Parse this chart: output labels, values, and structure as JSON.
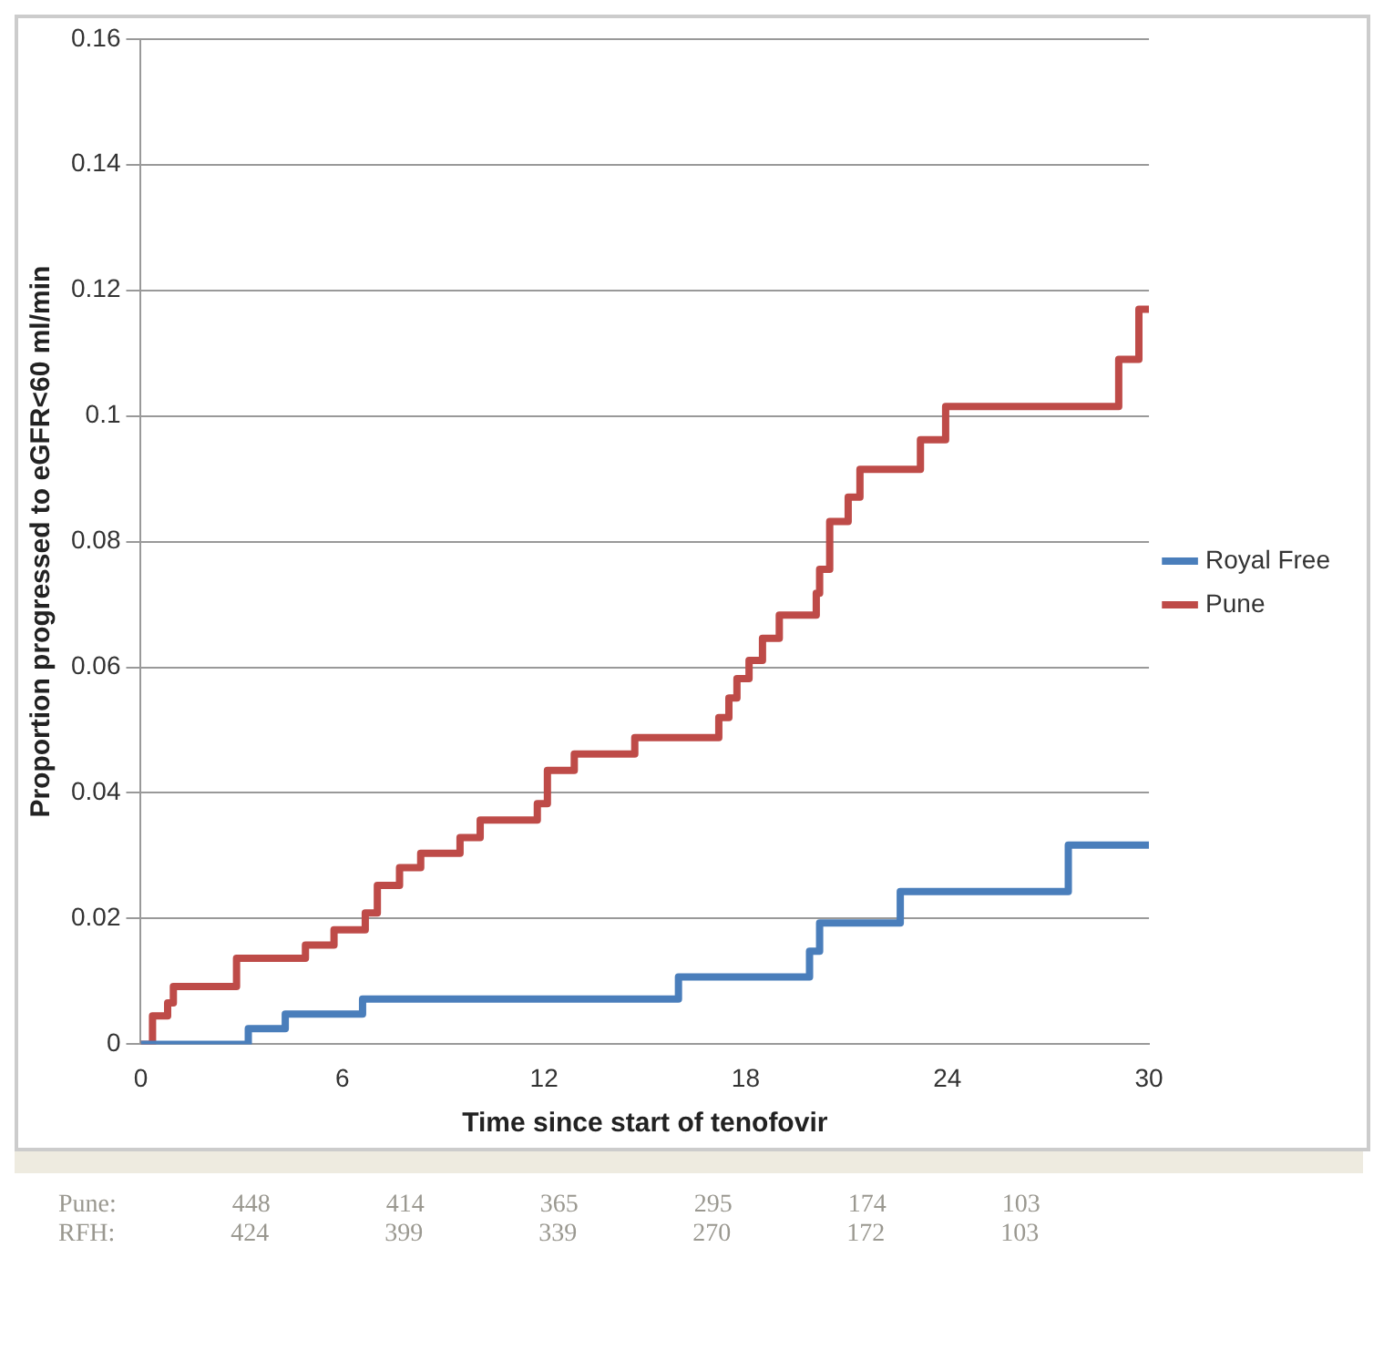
{
  "chart_data": {
    "type": "step",
    "xlabel": "Time since start of tenofovir",
    "ylabel": "Proportion progressed to eGFR<60 ml/min",
    "xlim": [
      0,
      30
    ],
    "xticks": [
      0,
      6,
      12,
      18,
      24,
      30
    ],
    "ylim": [
      0,
      0.16
    ],
    "yticks": [
      0,
      0.02,
      0.04,
      0.06,
      0.08,
      0.1,
      0.12,
      0.14,
      0.16
    ],
    "grid": "y",
    "legend": "right",
    "marker": "none",
    "line_style": "solid",
    "series": [
      {
        "name": "Royal Free",
        "color": "#4a7ebb",
        "x": [
          0,
          3.2,
          4.3,
          6.6,
          16.0,
          19.9,
          20.2,
          22.6,
          27.6,
          30
        ],
        "values": [
          0,
          0.0025,
          0.0048,
          0.0072,
          0.0107,
          0.0148,
          0.0193,
          0.0243,
          0.0317,
          0.0317
        ]
      },
      {
        "name": "Pune",
        "color": "#be4b48",
        "x": [
          0,
          0.35,
          0.8,
          0.97,
          2.85,
          4.9,
          5.75,
          6.68,
          7.04,
          7.7,
          8.33,
          9.5,
          10.1,
          11.8,
          12.1,
          12.9,
          14.7,
          17.2,
          17.5,
          17.74,
          18.1,
          18.5,
          19.0,
          20.1,
          20.2,
          20.5,
          21.05,
          21.4,
          23.2,
          23.95,
          29.1,
          29.7,
          30
        ],
        "values": [
          0,
          0.0045,
          0.0066,
          0.0092,
          0.0137,
          0.0158,
          0.0182,
          0.0209,
          0.0253,
          0.0281,
          0.0304,
          0.0329,
          0.0357,
          0.0383,
          0.0436,
          0.0462,
          0.0488,
          0.052,
          0.0551,
          0.0582,
          0.0611,
          0.0646,
          0.0683,
          0.0718,
          0.0756,
          0.0832,
          0.0871,
          0.0915,
          0.0962,
          0.1015,
          0.109,
          0.117,
          0.117
        ]
      }
    ],
    "annotations": [
      "Pune: 448 414 365 295 174 103",
      "RFH: 424 399 339 270 172 103"
    ]
  }
}
